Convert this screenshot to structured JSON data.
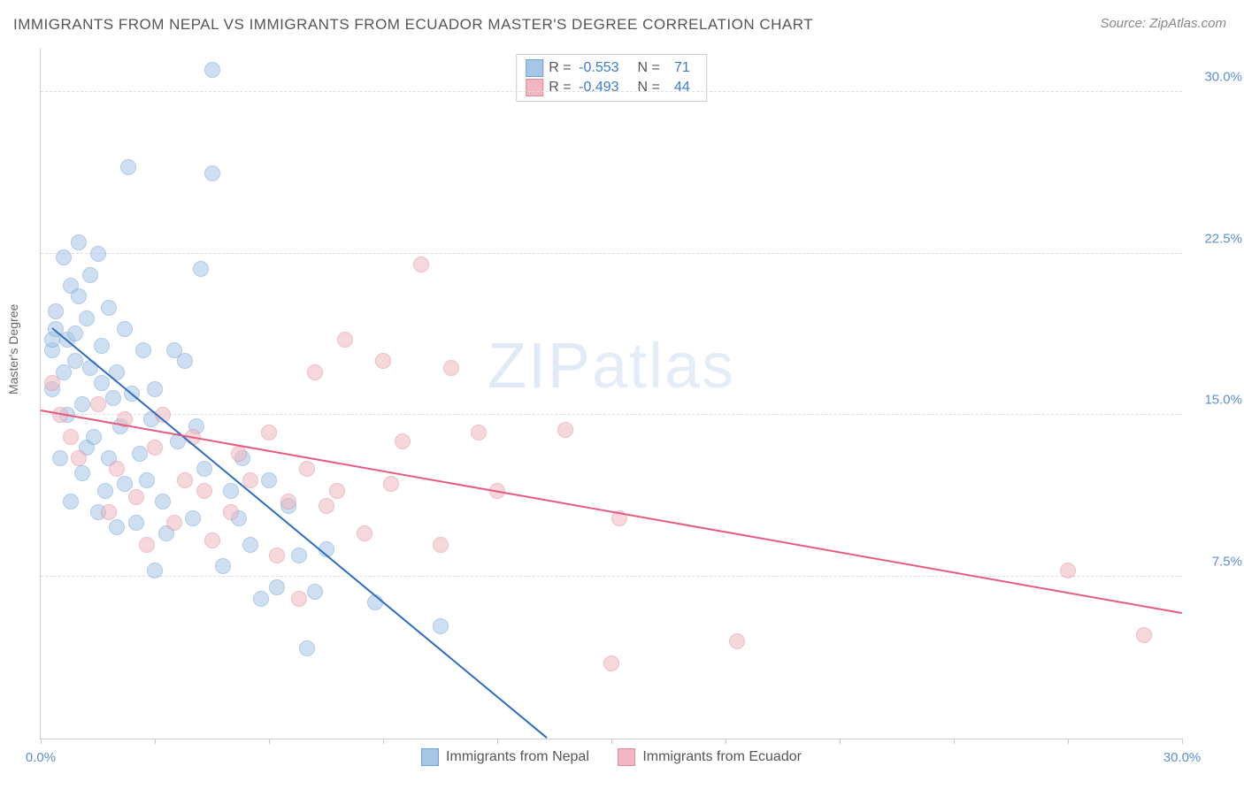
{
  "title": "IMMIGRANTS FROM NEPAL VS IMMIGRANTS FROM ECUADOR MASTER'S DEGREE CORRELATION CHART",
  "source": "Source: ZipAtlas.com",
  "ylabel": "Master's Degree",
  "watermark_bold": "ZIP",
  "watermark_thin": "atlas",
  "chart": {
    "type": "scatter",
    "background_color": "#ffffff",
    "grid_color": "#dddddd",
    "axis_color": "#cccccc",
    "tick_label_color": "#5b8dd6",
    "label_fontsize": 14,
    "tick_fontsize": 15,
    "title_fontsize": 17,
    "title_color": "#555555",
    "xlim": [
      0,
      30
    ],
    "ylim": [
      0,
      32
    ],
    "marker_radius": 8,
    "marker_opacity": 0.55,
    "line_width": 2,
    "y_gridlines": [
      7.5,
      15.0,
      22.5,
      30.0
    ],
    "y_tick_labels": [
      "7.5%",
      "15.0%",
      "22.5%",
      "30.0%"
    ],
    "x_ticks": [
      0,
      3,
      6,
      9,
      12,
      15,
      18,
      21,
      24,
      27,
      30
    ],
    "x_tick_labels": {
      "0": "0.0%",
      "30": "30.0%"
    },
    "series": [
      {
        "name": "Immigrants from Nepal",
        "fill": "#a6c6e7",
        "stroke": "#6fa0d6",
        "line_color": "#2f6cc0",
        "R": "-0.553",
        "N": "71",
        "trend": {
          "x1": 0.3,
          "y1": 19.0,
          "x2": 13.3,
          "y2": 0.0
        },
        "points": [
          [
            0.3,
            16.2
          ],
          [
            0.3,
            18.0
          ],
          [
            0.3,
            18.5
          ],
          [
            0.4,
            19.8
          ],
          [
            0.4,
            19.0
          ],
          [
            0.5,
            13.0
          ],
          [
            0.6,
            17.0
          ],
          [
            0.6,
            22.3
          ],
          [
            0.7,
            15.0
          ],
          [
            0.7,
            18.5
          ],
          [
            0.8,
            21.0
          ],
          [
            0.8,
            11.0
          ],
          [
            0.9,
            18.8
          ],
          [
            0.9,
            17.5
          ],
          [
            1.0,
            20.5
          ],
          [
            1.0,
            23.0
          ],
          [
            1.1,
            15.5
          ],
          [
            1.1,
            12.3
          ],
          [
            1.2,
            19.5
          ],
          [
            1.2,
            13.5
          ],
          [
            1.3,
            17.2
          ],
          [
            1.3,
            21.5
          ],
          [
            1.4,
            14.0
          ],
          [
            1.5,
            22.5
          ],
          [
            1.5,
            10.5
          ],
          [
            1.6,
            16.5
          ],
          [
            1.6,
            18.2
          ],
          [
            1.7,
            11.5
          ],
          [
            1.8,
            20.0
          ],
          [
            1.8,
            13.0
          ],
          [
            1.9,
            15.8
          ],
          [
            2.0,
            9.8
          ],
          [
            2.0,
            17.0
          ],
          [
            2.1,
            14.5
          ],
          [
            2.2,
            19.0
          ],
          [
            2.2,
            11.8
          ],
          [
            2.3,
            26.5
          ],
          [
            2.4,
            16.0
          ],
          [
            2.5,
            10.0
          ],
          [
            2.6,
            13.2
          ],
          [
            2.7,
            18.0
          ],
          [
            2.8,
            12.0
          ],
          [
            2.9,
            14.8
          ],
          [
            3.0,
            16.2
          ],
          [
            3.0,
            7.8
          ],
          [
            3.2,
            11.0
          ],
          [
            3.3,
            9.5
          ],
          [
            3.5,
            18.0
          ],
          [
            3.6,
            13.8
          ],
          [
            3.8,
            17.5
          ],
          [
            4.0,
            10.2
          ],
          [
            4.1,
            14.5
          ],
          [
            4.2,
            21.8
          ],
          [
            4.3,
            12.5
          ],
          [
            4.5,
            31.0
          ],
          [
            4.5,
            26.2
          ],
          [
            4.8,
            8.0
          ],
          [
            5.0,
            11.5
          ],
          [
            5.2,
            10.2
          ],
          [
            5.3,
            13.0
          ],
          [
            5.5,
            9.0
          ],
          [
            5.8,
            6.5
          ],
          [
            6.0,
            12.0
          ],
          [
            6.2,
            7.0
          ],
          [
            6.5,
            10.8
          ],
          [
            6.8,
            8.5
          ],
          [
            7.0,
            4.2
          ],
          [
            7.2,
            6.8
          ],
          [
            7.5,
            8.8
          ],
          [
            8.8,
            6.3
          ],
          [
            10.5,
            5.2
          ]
        ]
      },
      {
        "name": "Immigrants from Ecuador",
        "fill": "#f0b7c0",
        "stroke": "#e08a9a",
        "line_color": "#e65a80",
        "R": "-0.493",
        "N": "44",
        "trend": {
          "x1": 0.0,
          "y1": 15.2,
          "x2": 30.0,
          "y2": 5.8
        },
        "points": [
          [
            0.3,
            16.5
          ],
          [
            0.5,
            15.0
          ],
          [
            0.8,
            14.0
          ],
          [
            1.0,
            13.0
          ],
          [
            1.5,
            15.5
          ],
          [
            1.8,
            10.5
          ],
          [
            2.0,
            12.5
          ],
          [
            2.2,
            14.8
          ],
          [
            2.5,
            11.2
          ],
          [
            2.8,
            9.0
          ],
          [
            3.0,
            13.5
          ],
          [
            3.2,
            15.0
          ],
          [
            3.5,
            10.0
          ],
          [
            3.8,
            12.0
          ],
          [
            4.0,
            14.0
          ],
          [
            4.3,
            11.5
          ],
          [
            4.5,
            9.2
          ],
          [
            5.0,
            10.5
          ],
          [
            5.2,
            13.2
          ],
          [
            5.5,
            12.0
          ],
          [
            6.0,
            14.2
          ],
          [
            6.2,
            8.5
          ],
          [
            6.5,
            11.0
          ],
          [
            6.8,
            6.5
          ],
          [
            7.0,
            12.5
          ],
          [
            7.2,
            17.0
          ],
          [
            7.5,
            10.8
          ],
          [
            7.8,
            11.5
          ],
          [
            8.0,
            18.5
          ],
          [
            8.5,
            9.5
          ],
          [
            9.0,
            17.5
          ],
          [
            9.2,
            11.8
          ],
          [
            9.5,
            13.8
          ],
          [
            10.0,
            22.0
          ],
          [
            10.5,
            9.0
          ],
          [
            10.8,
            17.2
          ],
          [
            11.5,
            14.2
          ],
          [
            12.0,
            11.5
          ],
          [
            13.8,
            14.3
          ],
          [
            15.0,
            3.5
          ],
          [
            15.2,
            10.2
          ],
          [
            18.3,
            4.5
          ],
          [
            27.0,
            7.8
          ],
          [
            29.0,
            4.8
          ]
        ]
      }
    ]
  },
  "legend_top": {
    "r_label": "R =",
    "n_label": "N ="
  }
}
